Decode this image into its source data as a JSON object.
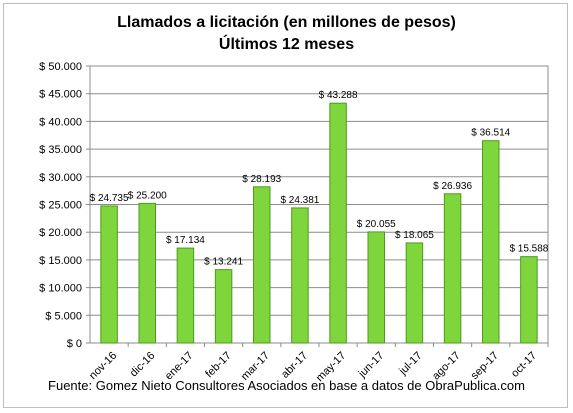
{
  "chart_data": {
    "type": "bar",
    "title": "Llamados a licitación (en millones de pesos)",
    "subtitle": "Últimos 12 meses",
    "categories": [
      "nov-16",
      "dic-16",
      "ene-17",
      "feb-17",
      "mar-17",
      "abr-17",
      "may-17",
      "jun-17",
      "jul-17",
      "ago-17",
      "sep-17",
      "oct-17"
    ],
    "values": [
      24735,
      25200,
      17134,
      13241,
      28193,
      24381,
      43288,
      20055,
      18065,
      26936,
      36514,
      15588
    ],
    "data_labels": [
      "$ 24.735",
      "$ 25.200",
      "$ 17.134",
      "$ 13.241",
      "$ 28.193",
      "$ 24.381",
      "$ 43.288",
      "$ 20.055",
      "$ 18.065",
      "$ 26.936",
      "$ 36.514",
      "$ 15.588"
    ],
    "y_ticks": [
      0,
      5000,
      10000,
      15000,
      20000,
      25000,
      30000,
      35000,
      40000,
      45000,
      50000
    ],
    "y_tick_labels": [
      "$ 0",
      "$ 5.000",
      "$ 10.000",
      "$ 15.000",
      "$ 20.000",
      "$ 25.000",
      "$ 30.000",
      "$ 35.000",
      "$ 40.000",
      "$ 45.000",
      "$ 50.000"
    ],
    "ylim": [
      0,
      50000
    ],
    "grid": true,
    "legend": false,
    "bar_color": "#7ed63c",
    "bar_edge_color": "#4e9a1e",
    "source": "Fuente: Gomez Nieto Consultores Asociados en base a datos de ObraPublica.com"
  }
}
